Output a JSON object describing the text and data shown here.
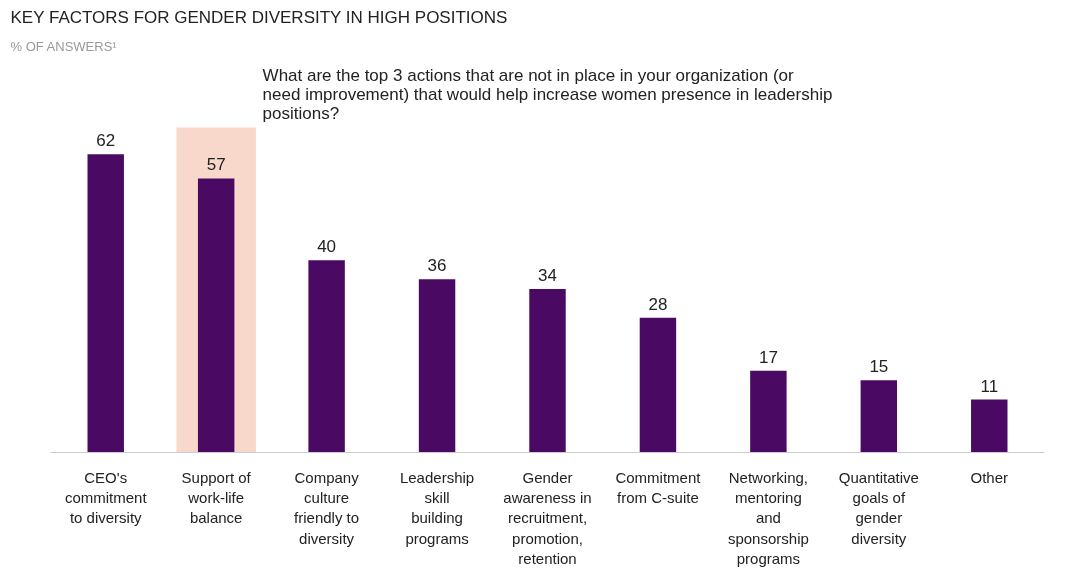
{
  "chart_data": {
    "type": "bar",
    "title": "KEY FACTORS FOR GENDER DIVERSITY IN HIGH POSITIONS",
    "subtitle": "% OF ANSWERS¹",
    "annotations": [
      "What are the top 3 actions that are not in place in your organization (or need improvement) that would help increase women presence in leadership positions?"
    ],
    "categories": [
      "CEO's commitment to diversity",
      "Support of work-life balance",
      "Company culture friendly to diversity",
      "Leadership skill building programs",
      "Gender awareness in recruitment, promotion, retention",
      "Commitment from C-suite",
      "Networking, mentoring and sponsorship programs",
      "Quantitative goals of gender diversity",
      "Other"
    ],
    "values": [
      62,
      57,
      40,
      36,
      34,
      28,
      17,
      15,
      11
    ],
    "color": "#4a0a63",
    "data_labels": true,
    "bands": [
      {
        "axis": "x",
        "from": "Support of work-life balance",
        "to": "Support of work-life balance",
        "color": "#f8d8ca"
      }
    ]
  }
}
